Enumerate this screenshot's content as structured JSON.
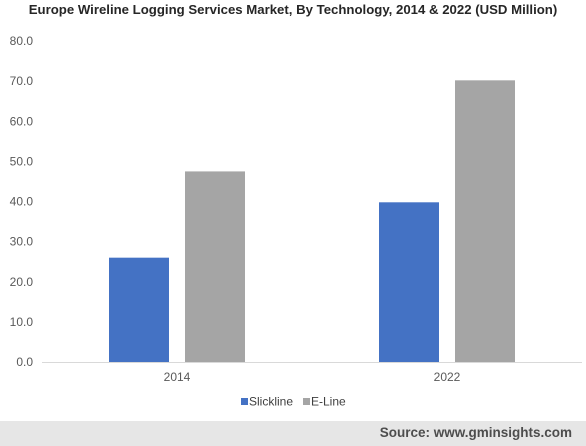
{
  "chart_data": {
    "type": "bar",
    "title": "Europe Wireline Logging Services Market, By Technology, 2014 & 2022 (USD Million)",
    "xlabel": "",
    "ylabel": "",
    "categories": [
      "2014",
      "2022"
    ],
    "series": [
      {
        "name": "Slickline",
        "values": [
          26.0,
          39.8
        ],
        "color": "#4472c4"
      },
      {
        "name": "E-Line",
        "values": [
          47.5,
          70.2
        ],
        "color": "#a5a5a5"
      }
    ],
    "ylim": [
      0,
      80
    ],
    "yticks": [
      "0.0",
      "10.0",
      "20.0",
      "30.0",
      "40.0",
      "50.0",
      "60.0",
      "70.0",
      "80.0"
    ],
    "grid": false,
    "legend": "bottom"
  },
  "source": "Source: www.gminsights.com",
  "colors": {
    "axis": "#d9d9d9",
    "footer_bg": "#e6e6e6"
  }
}
